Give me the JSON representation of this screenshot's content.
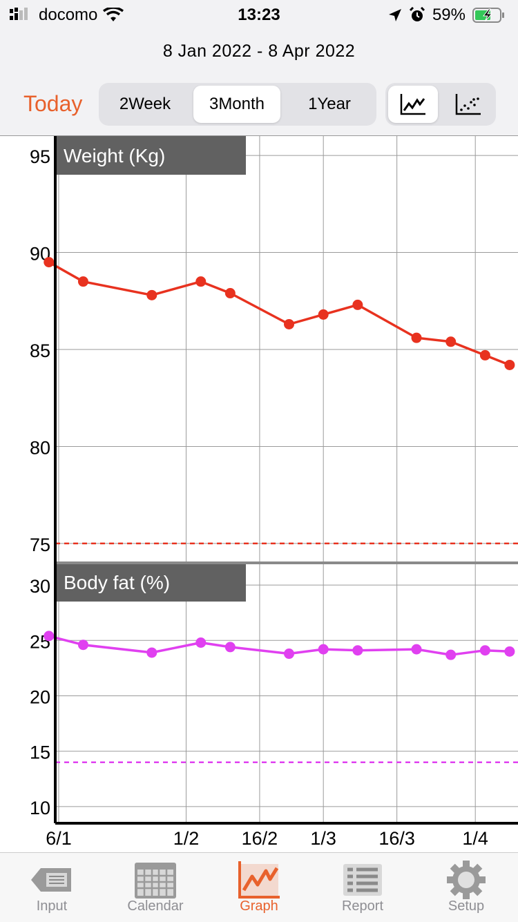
{
  "status": {
    "carrier": "docomo",
    "time": "13:23",
    "battery": "59%"
  },
  "header": {
    "date_range": "8 Jan 2022 - 8 Apr 2022",
    "today_label": "Today",
    "range_options": [
      "2Week",
      "3Month",
      "1Year"
    ],
    "selected_range": "3Month",
    "view_modes": [
      "line-chart-icon",
      "scatter-chart-icon"
    ],
    "selected_view": "line-chart-icon"
  },
  "colors": {
    "accent": "#e8612c",
    "weight": "#e8321f",
    "body_fat": "#e040f0"
  },
  "chart_data": [
    {
      "type": "line",
      "title": "Weight (Kg)",
      "x": [
        "4/1",
        "11/1",
        "25/1",
        "4/2",
        "10/2",
        "22/2",
        "1/3",
        "8/3",
        "20/3",
        "27/3",
        "3/4",
        "8/4"
      ],
      "values": [
        89.5,
        88.5,
        87.8,
        88.5,
        87.9,
        86.3,
        86.8,
        87.3,
        85.6,
        85.4,
        84.7,
        84.2
      ],
      "ylim": [
        74,
        96
      ],
      "yticks": [
        95,
        90,
        85,
        80,
        75
      ],
      "target_line": 75,
      "xticks": [
        "6/1",
        "1/2",
        "16/2",
        "1/3",
        "16/3",
        "1/4"
      ],
      "grid": true
    },
    {
      "type": "line",
      "title": "Body fat (%)",
      "x": [
        "4/1",
        "11/1",
        "25/1",
        "4/2",
        "10/2",
        "22/2",
        "1/3",
        "8/3",
        "20/3",
        "27/3",
        "3/4",
        "8/4"
      ],
      "values": [
        25.4,
        24.6,
        23.9,
        24.8,
        24.4,
        23.8,
        24.2,
        24.1,
        24.2,
        23.7,
        24.1,
        24.0
      ],
      "ylim": [
        8.5,
        32
      ],
      "yticks": [
        30,
        25,
        20,
        15,
        10
      ],
      "target_line": 14,
      "xticks": [
        "6/1",
        "1/2",
        "16/2",
        "1/3",
        "16/3",
        "1/4"
      ],
      "grid": true
    }
  ],
  "tabs": [
    {
      "label": "Input",
      "icon": "input-icon"
    },
    {
      "label": "Calendar",
      "icon": "calendar-icon"
    },
    {
      "label": "Graph",
      "icon": "graph-icon"
    },
    {
      "label": "Report",
      "icon": "report-icon"
    },
    {
      "label": "Setup",
      "icon": "gear-icon"
    }
  ],
  "active_tab": "Graph"
}
